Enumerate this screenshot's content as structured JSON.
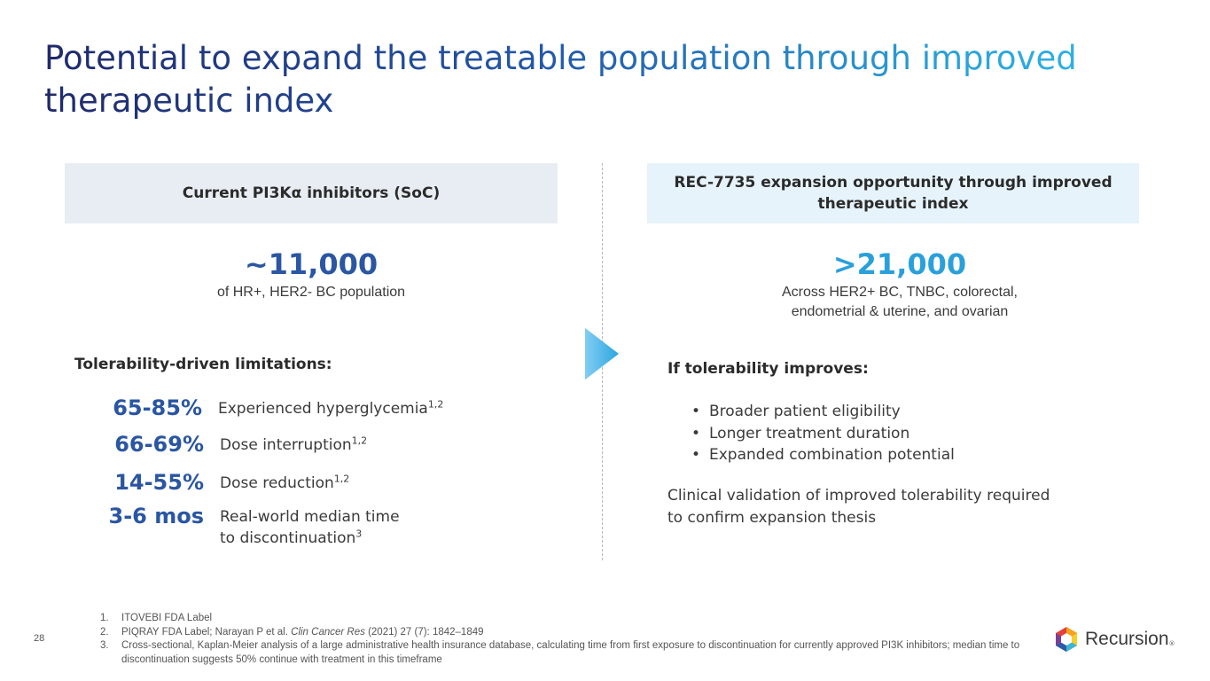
{
  "title": {
    "line1": "Potential to expand the treatable population through improved",
    "line2": "therapeutic index"
  },
  "left": {
    "header": "Current PI3Kα inhibitors (SoC)",
    "big_stat": "~11,000",
    "sub_stat": "of HR+, HER2- BC population",
    "section_title": "Tolerability-driven limitations:",
    "stats": [
      {
        "value": "65-85%",
        "text": "Experienced hyperglycemia",
        "sup": "1,2"
      },
      {
        "value": "66-69%",
        "text": "Dose interruption",
        "sup": "1,2"
      },
      {
        "value": "14-55%",
        "text": "Dose reduction",
        "sup": "1,2"
      },
      {
        "value": "3-6 mos",
        "text_line1": "Real-world median time",
        "text_line2": "to discontinuation",
        "sup": "3"
      }
    ]
  },
  "right": {
    "header": "REC-7735 expansion opportunity through improved therapeutic index",
    "big_stat": ">21,000",
    "sub_stat_line1": "Across HER2+ BC, TNBC, colorectal,",
    "sub_stat_line2": "endometrial & uterine, and ovarian",
    "section_title": "If tolerability improves:",
    "bullets": [
      "Broader patient eligibility",
      "Longer treatment duration",
      "Expanded combination potential"
    ],
    "bullet_glyph": "•",
    "clinical_line1": "Clinical validation of improved tolerability required",
    "clinical_line2": "to confirm expansion thesis"
  },
  "footer": {
    "page_number": "28",
    "footnotes": [
      {
        "num": "1.",
        "text": "ITOVEBI FDA Label"
      },
      {
        "num": "2.",
        "text_before": "PIQRAY FDA Label; Narayan P et al. ",
        "italic": "Clin Cancer Res",
        "text_after": " (2021) 27 (7): 1842–1849"
      },
      {
        "num": "3.",
        "text": "Cross-sectional, Kaplan-Meier analysis of a large administrative health insurance database, calculating time from first exposure to discontinuation for currently approved PI3K inhibitors; median time to discontinuation suggests 50% continue with treatment in this timeframe"
      }
    ],
    "logo_text": "Recursion",
    "logo_mark": "®"
  },
  "colors": {
    "title_dark": "#1f2a6b",
    "title_light": "#34b5e8",
    "stat_blue": "#2a56a2",
    "accent_cyan": "#2aa0db",
    "left_box_bg": "#e8edf4",
    "right_box_bg": "#e6f3fb"
  }
}
